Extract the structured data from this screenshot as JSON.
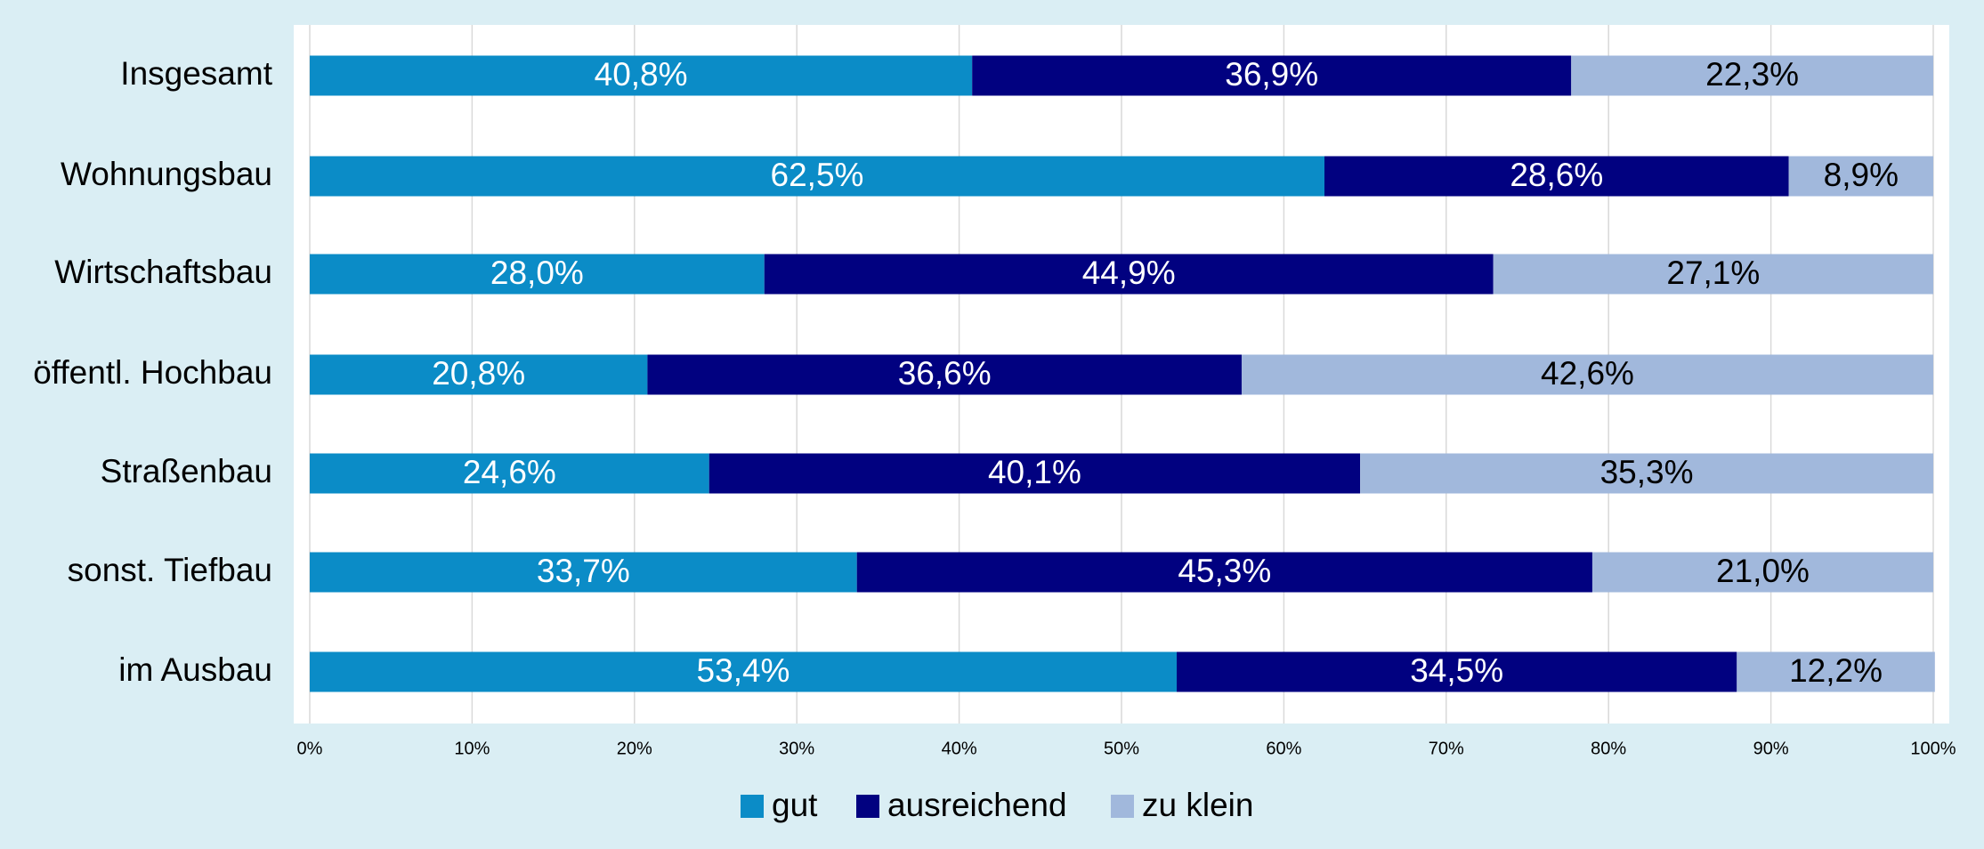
{
  "chart_data": {
    "type": "bar",
    "orientation": "horizontal",
    "stacked": true,
    "categories": [
      "Insgesamt",
      "Wohnungsbau",
      "Wirtschaftsbau",
      "öffentl. Hochbau",
      "Straßenbau",
      "sonst. Tiefbau",
      "im Ausbau"
    ],
    "series": [
      {
        "name": "gut",
        "color": "#0b8cc7",
        "label_color": "#ffffff",
        "values": [
          40.8,
          62.5,
          28.0,
          20.8,
          24.6,
          33.7,
          53.4
        ],
        "value_labels": [
          "40,8%",
          "62,5%",
          "28,0%",
          "20,8%",
          "24,6%",
          "33,7%",
          "53,4%"
        ]
      },
      {
        "name": "ausreichend",
        "color": "#010180",
        "label_color": "#ffffff",
        "values": [
          36.9,
          28.6,
          44.9,
          36.6,
          40.1,
          45.3,
          34.5
        ],
        "value_labels": [
          "36,9%",
          "28,6%",
          "44,9%",
          "36,6%",
          "40,1%",
          "45,3%",
          "34,5%"
        ]
      },
      {
        "name": "zu klein",
        "color": "#a1b8dc",
        "label_color": "#000000",
        "values": [
          22.3,
          8.9,
          27.1,
          42.6,
          35.3,
          21.0,
          12.2
        ],
        "value_labels": [
          "22,3%",
          "8,9%",
          "27,1%",
          "42,6%",
          "35,3%",
          "21,0%",
          "12,2%"
        ]
      }
    ],
    "xlim": [
      0,
      100
    ],
    "xticks": [
      {
        "value": 0,
        "label": "0%"
      },
      {
        "value": 10,
        "label": "10%"
      },
      {
        "value": 20,
        "label": "20%"
      },
      {
        "value": 30,
        "label": "30%"
      },
      {
        "value": 40,
        "label": "40%"
      },
      {
        "value": 50,
        "label": "50%"
      },
      {
        "value": 60,
        "label": "60%"
      },
      {
        "value": 70,
        "label": "70%"
      },
      {
        "value": 80,
        "label": "80%"
      },
      {
        "value": 90,
        "label": "90%"
      },
      {
        "value": 100,
        "label": "100%"
      }
    ],
    "grid": true,
    "legend": "bottom"
  }
}
